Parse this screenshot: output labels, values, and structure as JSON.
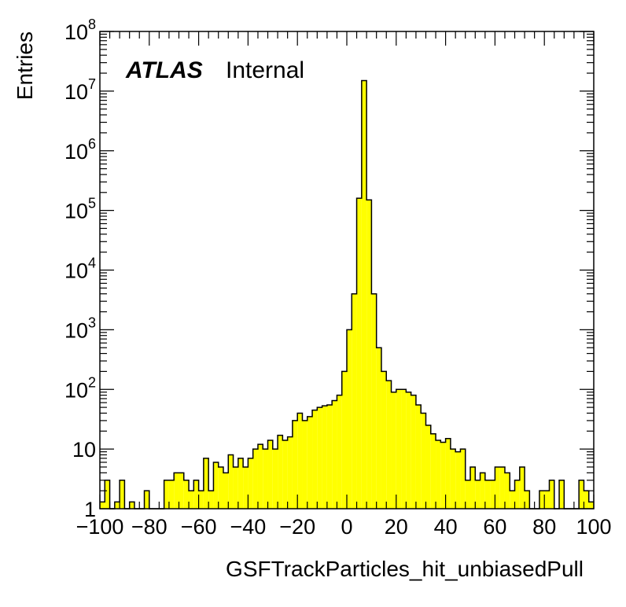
{
  "labels": {
    "atlas": "ATLAS",
    "internal": "Internal"
  },
  "chart_data": {
    "type": "bar",
    "style": "histogram",
    "xlabel": "GSFTrackParticles_hit_unbiasedPull",
    "ylabel": "Entries",
    "xlim": [
      -100,
      100
    ],
    "ylim": [
      1,
      100000000
    ],
    "yscale": "log",
    "fill_color": "#ffff00",
    "line_color": "#000000",
    "bin_width": 2,
    "x_ticks": [
      -100,
      -80,
      -60,
      -40,
      -20,
      0,
      20,
      40,
      60,
      80,
      100
    ],
    "x_tick_labels": [
      "−100",
      "−80",
      "−60",
      "−40",
      "−20",
      "0",
      "20",
      "40",
      "60",
      "80",
      "100"
    ],
    "y_ticks": [
      {
        "value": 1,
        "base": "1",
        "exp": ""
      },
      {
        "value": 10,
        "base": "10",
        "exp": ""
      },
      {
        "value": 100,
        "base": "10",
        "exp": "2"
      },
      {
        "value": 1000,
        "base": "10",
        "exp": "3"
      },
      {
        "value": 10000,
        "base": "10",
        "exp": "4"
      },
      {
        "value": 100000,
        "base": "10",
        "exp": "5"
      },
      {
        "value": 1000000,
        "base": "10",
        "exp": "6"
      },
      {
        "value": 10000000,
        "base": "10",
        "exp": "7"
      },
      {
        "value": 100000000,
        "base": "10",
        "exp": "8"
      }
    ],
    "values": [
      1.3,
      3,
      0,
      1.3,
      3,
      0,
      1.3,
      0,
      1,
      2,
      1,
      1,
      1,
      3,
      3,
      4,
      4,
      3,
      2,
      3,
      2,
      7,
      2,
      6,
      5,
      4,
      8,
      5,
      7,
      5,
      7,
      10,
      12,
      10,
      14,
      10,
      17,
      14,
      16,
      30,
      40,
      30,
      35,
      45,
      50,
      53,
      55,
      65,
      80,
      200,
      1000,
      4000,
      160000,
      15000000,
      150000,
      4000,
      500,
      200,
      140,
      90,
      100,
      100,
      90,
      80,
      55,
      40,
      25,
      18,
      14,
      13,
      15,
      10,
      9,
      10,
      3,
      5,
      3,
      4,
      3,
      3,
      5,
      5,
      4,
      2,
      3,
      5,
      2,
      0,
      1,
      2,
      2,
      3,
      0,
      3,
      1,
      1,
      0,
      3,
      2,
      1.3
    ]
  }
}
